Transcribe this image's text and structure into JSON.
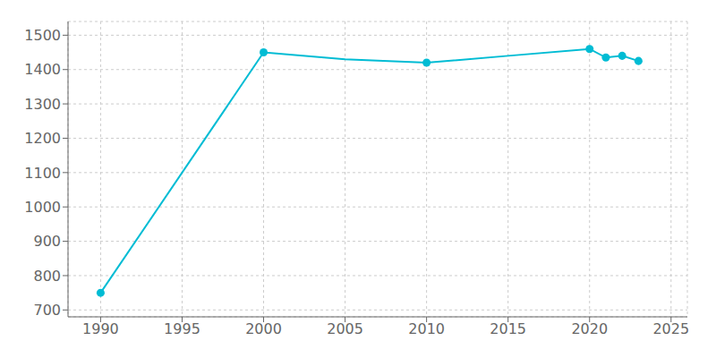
{
  "chart_data": {
    "type": "line",
    "x": [
      1990,
      2000,
      2005,
      2010,
      2015,
      2020,
      2021,
      2022,
      2023
    ],
    "series": [
      {
        "type": "line",
        "color": "#00BCD4",
        "line_style": "solid",
        "values": [
          750,
          1450,
          1430,
          1420,
          1440,
          1460,
          1435,
          1440,
          1425
        ]
      },
      {
        "type": "scatter",
        "color": "#00BCD4",
        "marker": "circle",
        "values": [
          750,
          1450,
          null,
          1420,
          null,
          1460,
          1435,
          1440,
          1425
        ]
      }
    ],
    "xlim": [
      1988,
      2026
    ],
    "ylim": [
      680,
      1540
    ],
    "xticks": [
      1990,
      1995,
      2000,
      2005,
      2010,
      2015,
      2020,
      2025
    ],
    "yticks": [
      700,
      800,
      900,
      1000,
      1100,
      1200,
      1300,
      1400,
      1500
    ],
    "grid": true
  }
}
